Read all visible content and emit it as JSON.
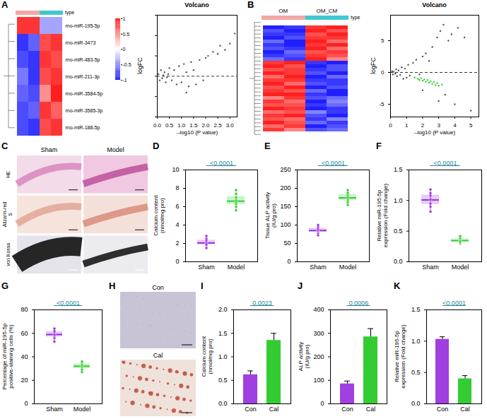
{
  "chart_data": [
    {
      "panel": "A",
      "type": "heatmap",
      "annotation_label": "type",
      "colors": [
        "#f4a6a6",
        "#f4a6a6",
        "#40c8d0",
        "#40c8d0"
      ],
      "rows": [
        "rno-miR-195-5p",
        "rno-miR-3473",
        "rno-miR-483-5p",
        "rno-miR-211-3p",
        "rno-miR-3584-5p",
        "rno-miR-3585-3p",
        "rno-miR-188-5p"
      ],
      "values": [
        [
          0.9,
          0.9,
          -0.4,
          -0.4
        ],
        [
          -0.9,
          -0.7,
          0.8,
          0.9
        ],
        [
          -0.8,
          -0.9,
          0.9,
          0.8
        ],
        [
          -0.6,
          -0.9,
          0.8,
          0.9
        ],
        [
          -0.7,
          -0.8,
          0.5,
          1.0
        ],
        [
          -0.8,
          -0.7,
          0.9,
          0.7
        ],
        [
          -0.8,
          -0.9,
          0.8,
          0.9
        ]
      ],
      "colorbar": {
        "lim": [
          -1,
          1
        ],
        "ticks": [
          1,
          0.5,
          0,
          -0.5,
          -1
        ]
      }
    },
    {
      "type": "scatter",
      "title": "Volcano",
      "x_label": "–log10 (P value)",
      "y_label": "logFC",
      "x": [
        0.05,
        0.1,
        0.15,
        0.2,
        0.25,
        0.3,
        0.35,
        0.4,
        0.45,
        0.5,
        0.6,
        0.7,
        0.8,
        0.9,
        1.0,
        1.1,
        1.2,
        1.2,
        1.3,
        1.4,
        1.5,
        1.6,
        1.75,
        1.9,
        2.0,
        2.1,
        2.3,
        2.5,
        2.6,
        2.8,
        3.0,
        3.2
      ],
      "values": [
        0.1,
        -0.2,
        0.3,
        -0.1,
        0.05,
        0.2,
        -0.3,
        -0.05,
        0.1,
        0.4,
        -0.2,
        0.3,
        -0.4,
        0.5,
        -0.3,
        0.6,
        0.2,
        -0.8,
        -0.5,
        0.7,
        0.3,
        -0.4,
        0.8,
        -0.2,
        0.9,
        1.0,
        1.2,
        1.1,
        1.5,
        1.3,
        1.6,
        2.1
      ],
      "color": "#555555",
      "reference_line": 0,
      "line_style": "dashed",
      "xlim": [
        0,
        3.3
      ],
      "xticks": [
        {
          "value": 0,
          "label": "0.0"
        },
        {
          "value": 0.5,
          "label": "0.5"
        },
        {
          "value": 1,
          "label": "1.0"
        },
        {
          "value": 1.5,
          "label": "1.5"
        },
        {
          "value": 2,
          "label": "2.0"
        },
        {
          "value": 2.5,
          "label": "2.5"
        },
        {
          "value": 3,
          "label": "3.0"
        }
      ],
      "ylim": [
        -2,
        3
      ],
      "tick_labels": "x"
    },
    {
      "panel": "B",
      "type": "heatmap",
      "annotation_label": "type",
      "tick_labels": false,
      "column_groups": [
        "OM",
        "OM_CM"
      ],
      "colors": [
        "#f4a6a6",
        "#f4a6a6",
        "#40c8d0",
        "#40c8d0"
      ],
      "values": [
        [
          -0.9,
          -0.8,
          0.8,
          0.9
        ],
        [
          -0.7,
          -0.9,
          0.9,
          0.7
        ],
        [
          -0.8,
          -0.8,
          0.7,
          0.9
        ],
        [
          -0.9,
          -0.7,
          0.8,
          0.8
        ],
        [
          -0.6,
          -0.9,
          0.9,
          0.6
        ],
        [
          -0.8,
          -0.9,
          0.8,
          0.9
        ],
        [
          -0.7,
          -0.8,
          0.9,
          0.6
        ],
        [
          -0.9,
          -0.6,
          0.7,
          0.8
        ],
        [
          -0.8,
          -0.7,
          0.8,
          0.7
        ],
        [
          -0.6,
          -0.8,
          0.9,
          0.5
        ],
        [
          0.8,
          0.9,
          -0.8,
          -0.9
        ],
        [
          0.9,
          0.7,
          -0.9,
          -0.7
        ],
        [
          0.7,
          0.8,
          -0.8,
          -0.7
        ],
        [
          0.9,
          0.8,
          -0.7,
          -0.9
        ],
        [
          0.6,
          0.9,
          -0.9,
          -0.6
        ],
        [
          0.8,
          0.8,
          -0.8,
          -0.8
        ],
        [
          0.9,
          0.6,
          -0.7,
          -0.8
        ],
        [
          0.7,
          0.9,
          -0.9,
          -0.7
        ],
        [
          0.8,
          0.7,
          -0.6,
          -0.9
        ],
        [
          0.9,
          0.9,
          -0.8,
          -0.9
        ],
        [
          0.5,
          0.8,
          -0.7,
          -0.6
        ],
        [
          0.8,
          0.6,
          -0.9,
          -0.5
        ],
        [
          0.7,
          0.7,
          -0.8,
          -0.6
        ],
        [
          0.9,
          0.8,
          -0.9,
          -0.8
        ],
        [
          0.6,
          0.7,
          -0.5,
          -0.8
        ],
        [
          0.8,
          0.9,
          -0.7,
          -0.9
        ],
        [
          0.7,
          0.6,
          -0.8,
          -0.5
        ],
        [
          0.9,
          0.7,
          -0.6,
          -0.8
        ],
        [
          0.6,
          0.8,
          -0.9,
          -0.7
        ],
        [
          0.8,
          0.5,
          -0.7,
          -0.6
        ]
      ]
    },
    {
      "type": "scatter",
      "title": "Volcano",
      "x_label": "–log10 (P value)",
      "y_label": "logFC",
      "x": [
        0.1,
        0.15,
        0.2,
        0.3,
        0.35,
        0.4,
        0.5,
        0.6,
        0.7,
        0.8,
        0.9,
        1.0,
        1.1,
        1.2,
        1.4,
        1.6,
        1.8,
        2.0,
        2.2,
        2.4,
        2.6,
        2.9,
        3.1,
        3.3,
        3.6,
        3.8,
        4.2,
        4.6,
        3.0,
        3.4,
        4.0,
        5.0,
        2.0,
        1.5,
        1.7,
        1.8,
        1.9,
        2.0,
        2.1,
        2.2,
        2.3,
        2.4,
        2.5,
        2.6,
        2.7,
        2.8,
        2.9,
        3.0,
        3.2
      ],
      "values": [
        0.2,
        -0.3,
        0.1,
        -0.2,
        0.5,
        -0.6,
        0.3,
        -0.4,
        0.8,
        -1.0,
        0.6,
        -0.8,
        1.2,
        -0.5,
        1.5,
        2.0,
        -0.3,
        2.5,
        3.0,
        1.8,
        4.0,
        5.5,
        6.5,
        7.5,
        5.0,
        6.0,
        7.0,
        5.5,
        -4.5,
        -3.5,
        -5.0,
        -6.0,
        -2.8,
        -0.8,
        -1.0,
        -1.2,
        -0.9,
        -1.3,
        -1.1,
        -1.5,
        -1.2,
        -1.6,
        -1.4,
        -1.8,
        -1.5,
        -2.0,
        -1.7,
        -2.1,
        -1.9
      ],
      "colors": [
        "#555555",
        "#555555",
        "#555555",
        "#555555",
        "#555555",
        "#555555",
        "#555555",
        "#555555",
        "#555555",
        "#555555",
        "#555555",
        "#555555",
        "#555555",
        "#555555",
        "#555555",
        "#555555",
        "#555555",
        "#555555",
        "#555555",
        "#555555",
        "#555555",
        "#555555",
        "#555555",
        "#555555",
        "#555555",
        "#555555",
        "#555555",
        "#555555",
        "#555555",
        "#555555",
        "#555555",
        "#555555",
        "#555555",
        "#33cc33",
        "#33cc33",
        "#33cc33",
        "#33cc33",
        "#33cc33",
        "#33cc33",
        "#33cc33",
        "#33cc33",
        "#33cc33",
        "#33cc33",
        "#33cc33",
        "#33cc33",
        "#33cc33",
        "#33cc33",
        "#33cc33",
        "#33cc33"
      ],
      "reference_line": 0,
      "line_style": "dashed",
      "xlim": [
        0,
        5.5
      ],
      "xticks": [
        0,
        1,
        2,
        3,
        4,
        5
      ],
      "ylim": [
        -7,
        9
      ],
      "yticks": [
        -5,
        0,
        5
      ]
    },
    {
      "panel": "C",
      "type": "image",
      "column_labels": [
        "Sham",
        "Model"
      ],
      "row_labels": [
        "HE",
        "Alizarin-red S",
        "von Kossa"
      ]
    },
    {
      "panel": "D",
      "type": "box",
      "y_label": "Calcium content (nmol/mg pro)",
      "categories": [
        "Sham",
        "Model"
      ],
      "points": [
        [
          1.5,
          1.8,
          2.0,
          2.1,
          2.3,
          2.5,
          2.8,
          1.9
        ],
        [
          5.6,
          6.0,
          6.3,
          6.5,
          6.7,
          7.0,
          7.4,
          7.8
        ]
      ],
      "colors": [
        "#9b30d9",
        "#33cc33"
      ],
      "ylim": [
        0,
        10
      ],
      "yticks": [
        0,
        2,
        4,
        6,
        8,
        10
      ],
      "annotation": "<0.0001"
    },
    {
      "panel": "E",
      "type": "box",
      "y_label": "Tissue ALP activity (IU/g pro)",
      "categories": [
        "Sham",
        "Model"
      ],
      "points": [
        [
          72,
          78,
          82,
          84,
          86,
          90,
          95,
          100
        ],
        [
          155,
          162,
          168,
          172,
          176,
          182,
          188,
          195
        ]
      ],
      "colors": [
        "#9b30d9",
        "#33cc33"
      ],
      "ylim": [
        0,
        250
      ],
      "yticks": [
        0,
        50,
        100,
        150,
        200,
        250
      ],
      "annotation": "<0.0001"
    },
    {
      "panel": "F",
      "type": "box",
      "y_label": "Relative miR-195-5p expression (Fold change)",
      "categories": [
        "Sham",
        "Model"
      ],
      "points": [
        [
          0.82,
          0.9,
          0.95,
          1.0,
          1.02,
          1.08,
          1.12,
          1.18
        ],
        [
          0.3,
          0.32,
          0.34,
          0.35,
          0.37,
          0.39,
          0.42,
          0.33
        ]
      ],
      "colors": [
        "#9b30d9",
        "#33cc33"
      ],
      "ylim": [
        0,
        1.5
      ],
      "yticks": [
        {
          "value": 0,
          "label": "0.0"
        },
        {
          "value": 0.5,
          "label": "0.5"
        },
        {
          "value": 1,
          "label": "1.0"
        },
        {
          "value": 1.5,
          "label": "1.5"
        }
      ],
      "annotation": "<0.0001"
    },
    {
      "panel": "G",
      "type": "box",
      "y_label": "Percentage of miR-195-5p positive-staining cells (%)",
      "categories": [
        "Sham",
        "Model"
      ],
      "points": [
        [
          53,
          56,
          58,
          59,
          61,
          62,
          64
        ],
        [
          27,
          29,
          31,
          32,
          33,
          35,
          36
        ]
      ],
      "colors": [
        "#9b30d9",
        "#33cc33"
      ],
      "ylim": [
        0,
        80
      ],
      "yticks": [
        0,
        20,
        40,
        60,
        80
      ],
      "annotation": "<0.0001"
    },
    {
      "panel": "H",
      "type": "image",
      "row_labels": [
        "Con",
        "Cal"
      ]
    },
    {
      "panel": "I",
      "type": "bar",
      "y_label": "Calcium content (nmol/mg pro)",
      "categories": [
        "Con",
        "Cal"
      ],
      "values": [
        0.62,
        1.35
      ],
      "errors": [
        0.08,
        0.15
      ],
      "colors": [
        "#a040e0",
        "#33cc33"
      ],
      "ylim": [
        0,
        2
      ],
      "yticks": [
        {
          "value": 0,
          "label": "0.0"
        },
        {
          "value": 0.5,
          "label": "0.5"
        },
        {
          "value": 1,
          "label": "1.0"
        },
        {
          "value": 1.5,
          "label": "1.5"
        },
        {
          "value": 2,
          "label": "2.0"
        }
      ],
      "annotation": "0.0023"
    },
    {
      "panel": "J",
      "type": "bar",
      "y_label": "ALP activity (IU/g pro)",
      "categories": [
        "Con",
        "Cal"
      ],
      "values": [
        85,
        285
      ],
      "errors": [
        12,
        35
      ],
      "colors": [
        "#a040e0",
        "#33cc33"
      ],
      "ylim": [
        0,
        400
      ],
      "yticks": [
        0,
        100,
        200,
        300,
        400
      ],
      "annotation": "0.0006"
    },
    {
      "panel": "K",
      "type": "bar",
      "y_label": "Relative miR-195-5p expression (Fold change)",
      "categories": [
        "Con",
        "Cal"
      ],
      "values": [
        1.03,
        0.4
      ],
      "errors": [
        0.04,
        0.05
      ],
      "colors": [
        "#a040e0",
        "#33cc33"
      ],
      "ylim": [
        0,
        1.5
      ],
      "yticks": [
        {
          "value": 0,
          "label": "0.0"
        },
        {
          "value": 0.5,
          "label": "0.5"
        },
        {
          "value": 1,
          "label": "1.0"
        },
        {
          "value": 1.5,
          "label": "1.5"
        }
      ],
      "annotation": "<0.0001"
    }
  ]
}
